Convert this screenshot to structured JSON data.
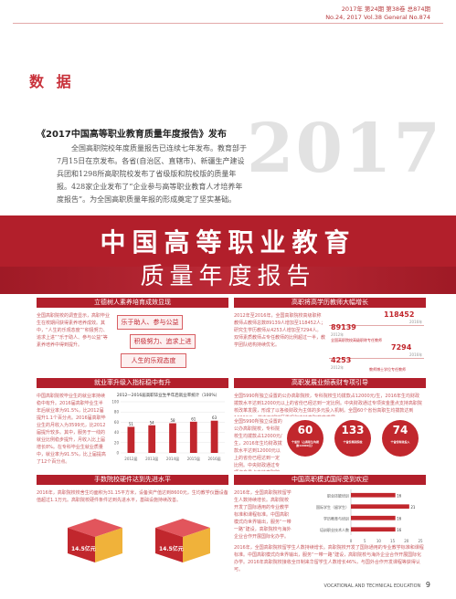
{
  "header": {
    "line1": "2017年 第24期  第38卷  总874期",
    "line2": "No.24, 2017   Vol.38   General No.874"
  },
  "section_label": "数 据",
  "article": {
    "title": "《2017中国高等职业教育质量年度报告》发布",
    "intro": "全国高职院校年度质量报告已连续七年发布。教育部于7月15日在京发布。各省(自治区、直辖市)、新疆生产建设兵团和1298所高职院校发布了省级版和院校版的质量年报。428家企业发布了“企业参与高等职业教育人才培养年度报告”。为全国高职质量年报的形成奠定了坚实基础。",
    "big_year": "2017"
  },
  "banner": {
    "line1": "中国高等职业教育",
    "line2": "质量年度报告"
  },
  "sections": {
    "s1": {
      "title": "立德树人素养培育成效显现",
      "text": "全国高职院校的调查显示，高职毕业生在校期间获得素养培养成效。其中，“人生的乐观态度”“积极努力、追求上进”“乐于助人、参与公益”等素养培养中得到提升。",
      "tags": [
        "乐于助人、参与公益",
        "积极努力、追求上进",
        "人生的乐观态度"
      ]
    },
    "s2": {
      "title": "高职将高学历教师大幅增长",
      "text": "2012年至2016年，全国高职院校高级职称教师占教师总数89139人增加至118452人；研究生学历教师从4253人增加至7294人。双师素质教师占专任教师的比例超过一半，教学团队结构持续优化。",
      "num1": "118452",
      "num1_year": "2016年",
      "num2": "89139",
      "num2_year": "2012年",
      "num3": "7294",
      "num3_year": "2016年",
      "num4": "4253",
      "num4_year": "2012年",
      "label_a": "全国高职院校高级职称专任教师",
      "label_b": "教师博士学位专任教师"
    },
    "s3": {
      "title": "就业率升级入指标稳中有升",
      "text": "中国高职院校毕业生的就业率持续稳中有升。2016届高职毕业生半年后就业率为91.5%，比2012届提升1.1个百分点。2016届高职毕业生的月收入为3599元，比2012届提升较多。其中，服务于一线的就业比例稳步提升，月收入比上届增长8%。在专科毕业生就业质量中，就业率为91.5%，比上届提高了12个百分点。"
    },
    "s4": {
      "title": "高职发展业频表财专项引导",
      "text": "全国5990所独立设置的公办高职院校，专科院校生均拨款占12000元/生，2016年生均财政拨款水平达到12000元以上的省份已经达到一定比例。中央财政通过专项资金重点支持高职院校改革发展，形成了以各级财政为主体的多元投入机制。全国60个省份高职生均拨款达到12000元，其中西部地区重视和支持高职教育发展。",
      "circles": [
        {
          "num": "60",
          "label": "个省份（占高职生均拨款12000元）"
        },
        {
          "num": "133",
          "label": "个省份高职院校"
        },
        {
          "num": "74",
          "label": "个省份财政投入"
        }
      ]
    },
    "s5": {
      "title": "手数院校硬件达到先进水平",
      "text": "2016年，高职院校校舍生均面积为31.15平方米，设备资产值达到8600元，生均教学仪器设备值超过1.1万元。高职院校硬件条件达到先进水平，基础设施持续改善。",
      "cube1": "14.5亿元",
      "cube2": "14.5亿元"
    },
    "s6": {
      "title": "中国高职模式国际受到欢迎",
      "text": "2016年，全国高职院校留学生人数持续增长。高职院校开发了国际通用的专业教学标准和课程标准。中国高职模式向世界输出，服务“一带一路”建设，高职院校与海外企业合作开展国际化办学。2016年高职院校接收全日制来华留学生人数增长46%，与国外合作开发课程等获得认可。"
    }
  },
  "chart_data": [
    {
      "type": "bar",
      "title": "2012—2016届高职毕业生半年后就业率统计（100%）",
      "categories": [
        "2012届",
        "2013届",
        "2014届",
        "2015届",
        "2016届"
      ],
      "values": [
        51,
        54,
        58,
        61,
        63
      ],
      "ylim": [
        0,
        100
      ],
      "yticks": [
        0,
        20,
        40,
        60,
        80,
        100
      ],
      "bar_color": "#c1272d"
    },
    {
      "type": "bar",
      "orientation": "horizontal",
      "categories": [
        "职业技能培训",
        "国际学生（留学生）",
        "学历教育与培训",
        "培训职业技术人数"
      ],
      "values": [
        16,
        21,
        16,
        16
      ],
      "xlim": [
        0,
        25
      ],
      "xticks": [
        0,
        5,
        10,
        15,
        20,
        25
      ],
      "bar_color": "#c1272d"
    }
  ],
  "footer": {
    "journal": "VOCATIONAL AND TECHNICAL EDUCATION",
    "page": "9"
  }
}
